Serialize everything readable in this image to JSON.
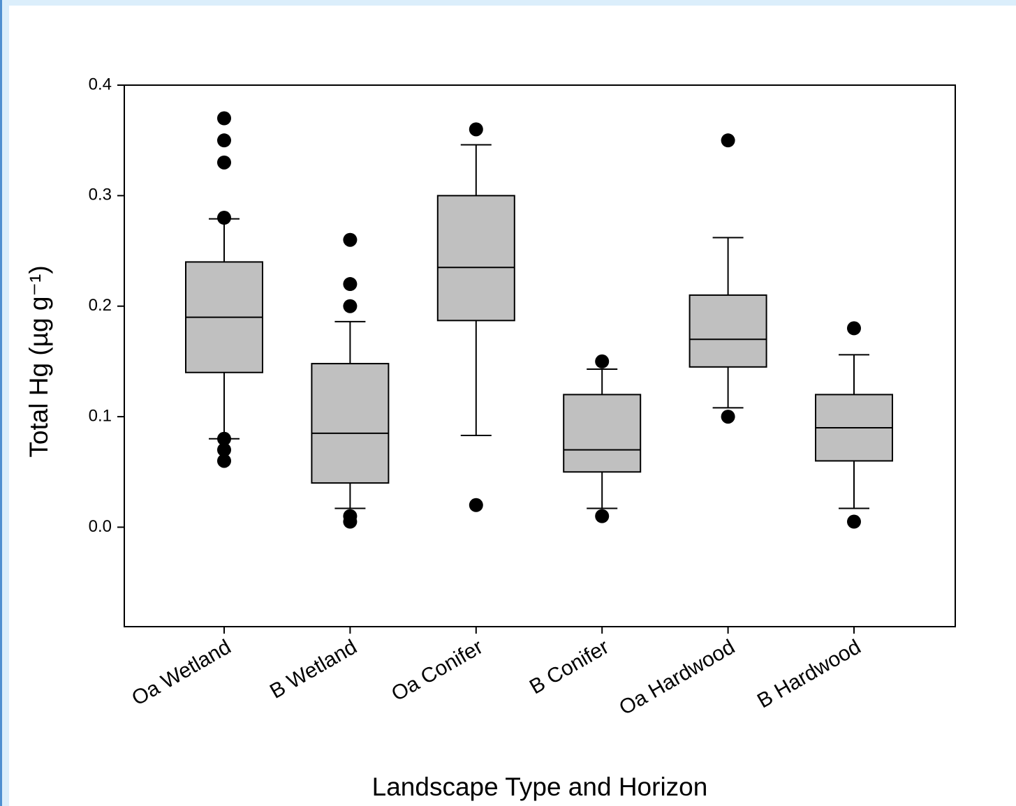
{
  "chart_data": {
    "type": "box",
    "x_label": "Landscape Type and Horizon",
    "y_label": "Total Hg (µg g⁻¹)",
    "categories": [
      "Oa Wetland",
      "B Wetland",
      "Oa Conifer",
      "B Conifer",
      "Oa Hardwood",
      "B Hardwood"
    ],
    "boxes": [
      {
        "whisker_low": 0.08,
        "q1": 0.14,
        "median": 0.19,
        "q3": 0.24,
        "whisker_high": 0.279,
        "outliers": [
          0.37,
          0.35,
          0.33,
          0.28,
          0.08,
          0.07,
          0.06
        ]
      },
      {
        "whisker_low": 0.017,
        "q1": 0.04,
        "median": 0.085,
        "q3": 0.148,
        "whisker_high": 0.186,
        "outliers": [
          0.26,
          0.22,
          0.2,
          0.01,
          0.005
        ]
      },
      {
        "whisker_low": 0.083,
        "q1": 0.187,
        "median": 0.235,
        "q3": 0.3,
        "whisker_high": 0.346,
        "outliers": [
          0.36,
          0.02
        ]
      },
      {
        "whisker_low": 0.017,
        "q1": 0.05,
        "median": 0.07,
        "q3": 0.12,
        "whisker_high": 0.143,
        "outliers": [
          0.15,
          0.01
        ]
      },
      {
        "whisker_low": 0.108,
        "q1": 0.145,
        "median": 0.17,
        "q3": 0.21,
        "whisker_high": 0.262,
        "outliers": [
          0.35,
          0.1
        ]
      },
      {
        "whisker_low": 0.017,
        "q1": 0.06,
        "median": 0.09,
        "q3": 0.12,
        "whisker_high": 0.156,
        "outliers": [
          0.18,
          0.005
        ]
      }
    ],
    "box_color": "#c0c0c0",
    "ylim": [
      -0.09,
      0.4
    ],
    "yticks": [
      {
        "value": 0,
        "label": "0.0"
      },
      0.1,
      0.2,
      0.3,
      0.4
    ]
  }
}
